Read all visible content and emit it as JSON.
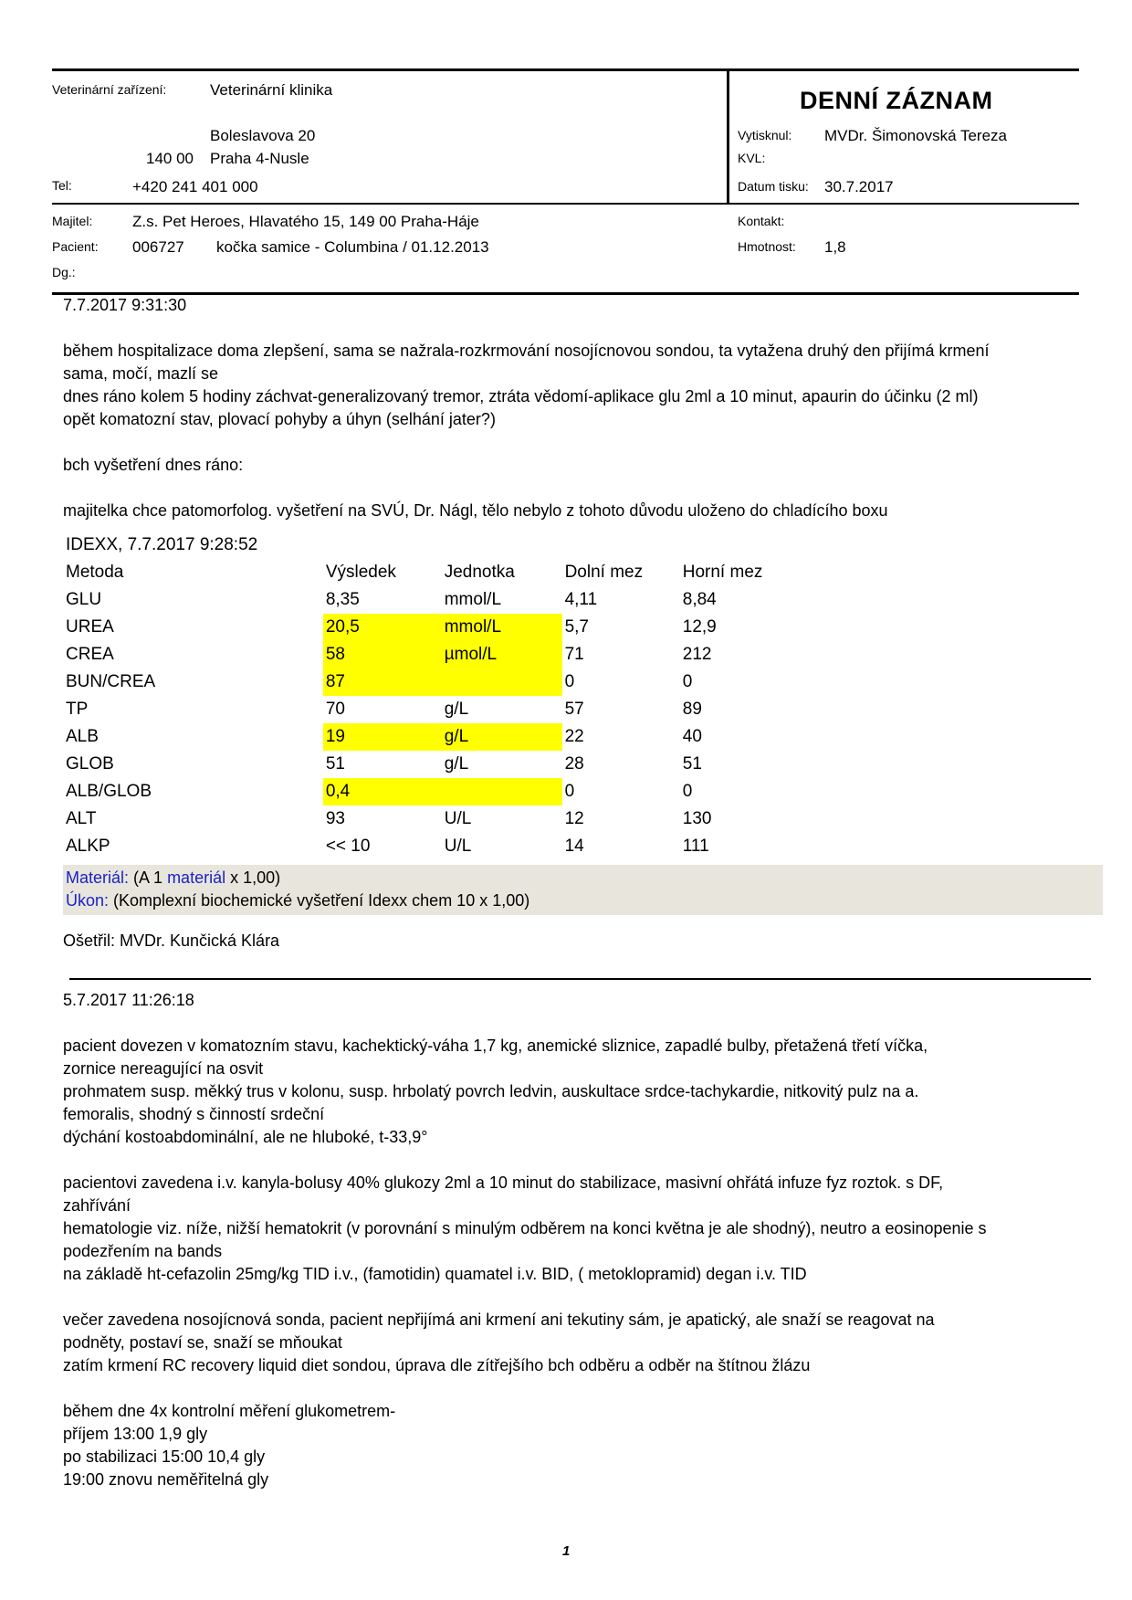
{
  "header": {
    "facility_label": "Veterinární zařízení:",
    "facility_name": "Veterinární klinika",
    "street": "Boleslavova 20",
    "zip": "140 00",
    "city": "Praha 4-Nusle",
    "tel_label": "Tel:",
    "tel_value": "+420 241 401 000",
    "title": "DENNÍ ZÁZNAM",
    "printed_by_label": "Vytisknul:",
    "printed_by_value": "MVDr. Šimonovská  Tereza",
    "kvl_label": "KVL:",
    "print_date_label": "Datum tisku:",
    "print_date_value": "30.7.2017",
    "owner_label": "Majitel:",
    "owner_value": "Z.s. Pet Heroes, Hlavatého 15, 149 00 Praha-Háje",
    "contact_label": "Kontakt:",
    "patient_label": "Pacient:",
    "patient_id": "006727",
    "patient_desc": "kočka samice - Columbina / 01.12.2013",
    "weight_label": "Hmotnost:",
    "weight_value": "1,8",
    "dg_label": "Dg.:"
  },
  "entry1": {
    "timestamp": "7.7.2017 9:31:30",
    "lines": [
      "během hospitalizace doma zlepšení, sama se nažrala-rozkrmování nosojícnovou sondou, ta vytažena druhý den přijímá krmení",
      "sama, močí, mazlí se",
      "dnes ráno kolem 5 hodiny záchvat-generalizovaný tremor, ztráta vědomí-aplikace glu 2ml a 10 minut, apaurin do účinku (2 ml)",
      "opět komatozní stav, plovací pohyby a úhyn (selhání jater?)",
      "",
      "bch vyšetření dnes ráno:",
      "",
      "majitelka chce patomorfolog. vyšetření na SVÚ, Dr. Nágl, tělo nebylo z tohoto důvodu uloženo do chladícího boxu"
    ]
  },
  "lab": {
    "title": "IDEXX, 7.7.2017 9:28:52",
    "headers": [
      "Metoda",
      "Výsledek",
      "Jednotka",
      "Dolní mez",
      "Horní mez"
    ],
    "rows": [
      {
        "method": "GLU",
        "result": "8,35",
        "unit": "mmol/L",
        "low": "4,11",
        "high": "8,84",
        "flag": false
      },
      {
        "method": "UREA",
        "result": "20,5",
        "unit": "mmol/L",
        "low": "5,7",
        "high": "12,9",
        "flag": true
      },
      {
        "method": "CREA",
        "result": "58",
        "unit": "µmol/L",
        "low": "71",
        "high": "212",
        "flag": true
      },
      {
        "method": "BUN/CREA",
        "result": "87",
        "unit": "",
        "low": "0",
        "high": "0",
        "flag": true
      },
      {
        "method": "TP",
        "result": "70",
        "unit": "g/L",
        "low": "57",
        "high": "89",
        "flag": false
      },
      {
        "method": "ALB",
        "result": "19",
        "unit": "g/L",
        "low": "22",
        "high": "40",
        "flag": true
      },
      {
        "method": "GLOB",
        "result": "51",
        "unit": "g/L",
        "low": "28",
        "high": "51",
        "flag": false
      },
      {
        "method": "ALB/GLOB",
        "result": "0,4",
        "unit": "",
        "low": "0",
        "high": "0",
        "flag": true
      },
      {
        "method": "ALT",
        "result": "93",
        "unit": "U/L",
        "low": "12",
        "high": "130",
        "flag": false
      },
      {
        "method": "ALKP",
        "result": "<< 10",
        "unit": "U/L",
        "low": "14",
        "high": "111",
        "flag": false
      }
    ],
    "highlight_color": "#ffff00"
  },
  "material": {
    "label": "Materiál:",
    "text_a": " (A 1 ",
    "text_link": "materiál",
    "text_b": " x 1,00)",
    "ukon_label": "Úkon:",
    "ukon_text": " (Komplexní biochemické vyšetření Idexx chem 10 x 1,00)"
  },
  "treated_by": "Ošetřil: MVDr.  Kunčická  Klára",
  "entry2": {
    "timestamp": "5.7.2017 11:26:18",
    "lines": [
      "pacient dovezen v komatozním stavu, kachektický-váha 1,7 kg, anemické sliznice, zapadlé bulby, přetažená třetí víčka,",
      "zornice nereagující na osvit",
      "prohmatem susp. měkký trus v kolonu, susp. hrbolatý povrch ledvin, auskultace srdce-tachykardie, nitkovitý pulz na a.",
      "femoralis, shodný s činností srdeční",
      "dýchání kostoabdominální, ale ne hluboké, t-33,9°",
      "",
      "pacientovi zavedena i.v. kanyla-bolusy 40% glukozy 2ml a 10 minut do stabilizace, masivní ohřátá infuze fyz roztok. s DF,",
      "zahřívání",
      "hematologie viz. níže, nižší hematokrit (v porovnání s minulým odběrem na konci května je ale shodný), neutro a eosinopenie s",
      "podezřením na bands",
      "na základě ht-cefazolin 25mg/kg TID i.v., (famotidin) quamatel i.v. BID, ( metoklopramid) degan i.v. TID",
      "",
      "večer zavedena nosojícnová sonda, pacient nepřijímá ani krmení ani tekutiny sám, je apatický, ale snaží se reagovat na",
      "podněty, postaví se, snaží se mňoukat",
      "zatím krmení RC recovery liquid diet sondou, úprava dle zítřejšího bch odběru a odběr na štítnou žlázu",
      "",
      "během dne 4x kontrolní měření glukometrem-",
      "příjem 13:00 1,9 gly",
      "po stabilizaci 15:00 10,4 gly",
      "19:00 znovu neměřitelná gly"
    ]
  },
  "page_number": "1"
}
